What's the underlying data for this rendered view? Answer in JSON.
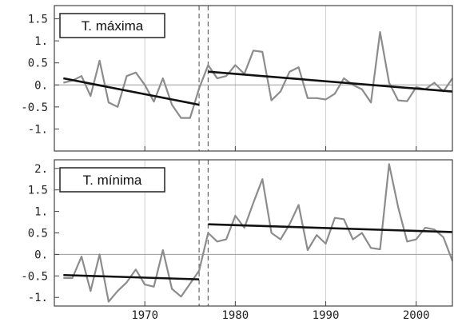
{
  "chart_data": [
    {
      "type": "line",
      "title": "T. máxima",
      "xlim": [
        1960,
        2004
      ],
      "ylim": [
        -1.5,
        1.8
      ],
      "yticks": [
        -1,
        -0.5,
        0,
        0.5,
        1,
        1.5
      ],
      "ytick_labels": [
        "-1.",
        "-0.5",
        "0.",
        "0.5",
        "1.",
        "1.5"
      ],
      "xticks": [
        1970,
        1980,
        1990,
        2000
      ],
      "grid": true,
      "breakpoints": [
        1976,
        1977
      ],
      "series": [
        {
          "x": [
            1961,
            1962,
            1963,
            1964,
            1965,
            1966,
            1967,
            1968,
            1969,
            1970,
            1971,
            1972,
            1973,
            1974,
            1975,
            1976,
            1977,
            1978,
            1979,
            1980,
            1981,
            1982,
            1983,
            1984,
            1985,
            1986,
            1987,
            1988,
            1989,
            1990,
            1991,
            1992,
            1993,
            1994,
            1995,
            1996,
            1997,
            1998,
            1999,
            2000,
            2001,
            2002,
            2003,
            2004
          ],
          "y": [
            0.05,
            0.1,
            0.2,
            -0.25,
            0.55,
            -0.4,
            -0.5,
            0.2,
            0.28,
            0.0,
            -0.38,
            0.15,
            -0.45,
            -0.75,
            -0.75,
            -0.08,
            0.45,
            0.15,
            0.2,
            0.45,
            0.25,
            0.78,
            0.75,
            -0.35,
            -0.15,
            0.3,
            0.4,
            -0.3,
            -0.3,
            -0.33,
            -0.2,
            0.15,
            0.0,
            -0.1,
            -0.4,
            1.2,
            0.05,
            -0.35,
            -0.37,
            -0.05,
            -0.1,
            0.05,
            -0.15,
            0.15
          ]
        }
      ],
      "trends": [
        {
          "x": [
            1961,
            1976
          ],
          "y": [
            0.15,
            -0.45
          ]
        },
        {
          "x": [
            1977,
            2004
          ],
          "y": [
            0.3,
            -0.15
          ]
        }
      ]
    },
    {
      "type": "line",
      "title": "T. mínima",
      "xlim": [
        1960,
        2004
      ],
      "ylim": [
        -1.2,
        2.2
      ],
      "yticks": [
        -1,
        -0.5,
        0,
        0.5,
        1,
        1.5,
        2
      ],
      "ytick_labels": [
        "-1.",
        "-0.5",
        "0.",
        "0.5",
        "1.",
        "1.5",
        "2."
      ],
      "xticks": [
        1970,
        1980,
        1990,
        2000
      ],
      "xtick_labels": [
        "1970",
        "1980",
        "1990",
        "2000"
      ],
      "grid": true,
      "breakpoints": [
        1976,
        1977
      ],
      "series": [
        {
          "x": [
            1961,
            1962,
            1963,
            1964,
            1965,
            1966,
            1967,
            1968,
            1969,
            1970,
            1971,
            1972,
            1973,
            1974,
            1975,
            1976,
            1977,
            1978,
            1979,
            1980,
            1981,
            1982,
            1983,
            1984,
            1985,
            1986,
            1987,
            1988,
            1989,
            1990,
            1991,
            1992,
            1993,
            1994,
            1995,
            1996,
            1997,
            1998,
            1999,
            2000,
            2001,
            2002,
            2003,
            2004
          ],
          "y": [
            -0.55,
            -0.55,
            -0.05,
            -0.85,
            0.0,
            -1.1,
            -0.85,
            -0.65,
            -0.35,
            -0.7,
            -0.75,
            0.1,
            -0.8,
            -0.98,
            -0.68,
            -0.38,
            0.5,
            0.3,
            0.35,
            0.9,
            0.62,
            1.2,
            1.75,
            0.5,
            0.35,
            0.7,
            1.15,
            0.1,
            0.45,
            0.25,
            0.85,
            0.82,
            0.35,
            0.5,
            0.15,
            0.12,
            2.1,
            1.1,
            0.3,
            0.35,
            0.62,
            0.58,
            0.4,
            -0.15
          ]
        }
      ],
      "trends": [
        {
          "x": [
            1961,
            1976
          ],
          "y": [
            -0.48,
            -0.58
          ]
        },
        {
          "x": [
            1977,
            2004
          ],
          "y": [
            0.7,
            0.52
          ]
        }
      ]
    }
  ]
}
